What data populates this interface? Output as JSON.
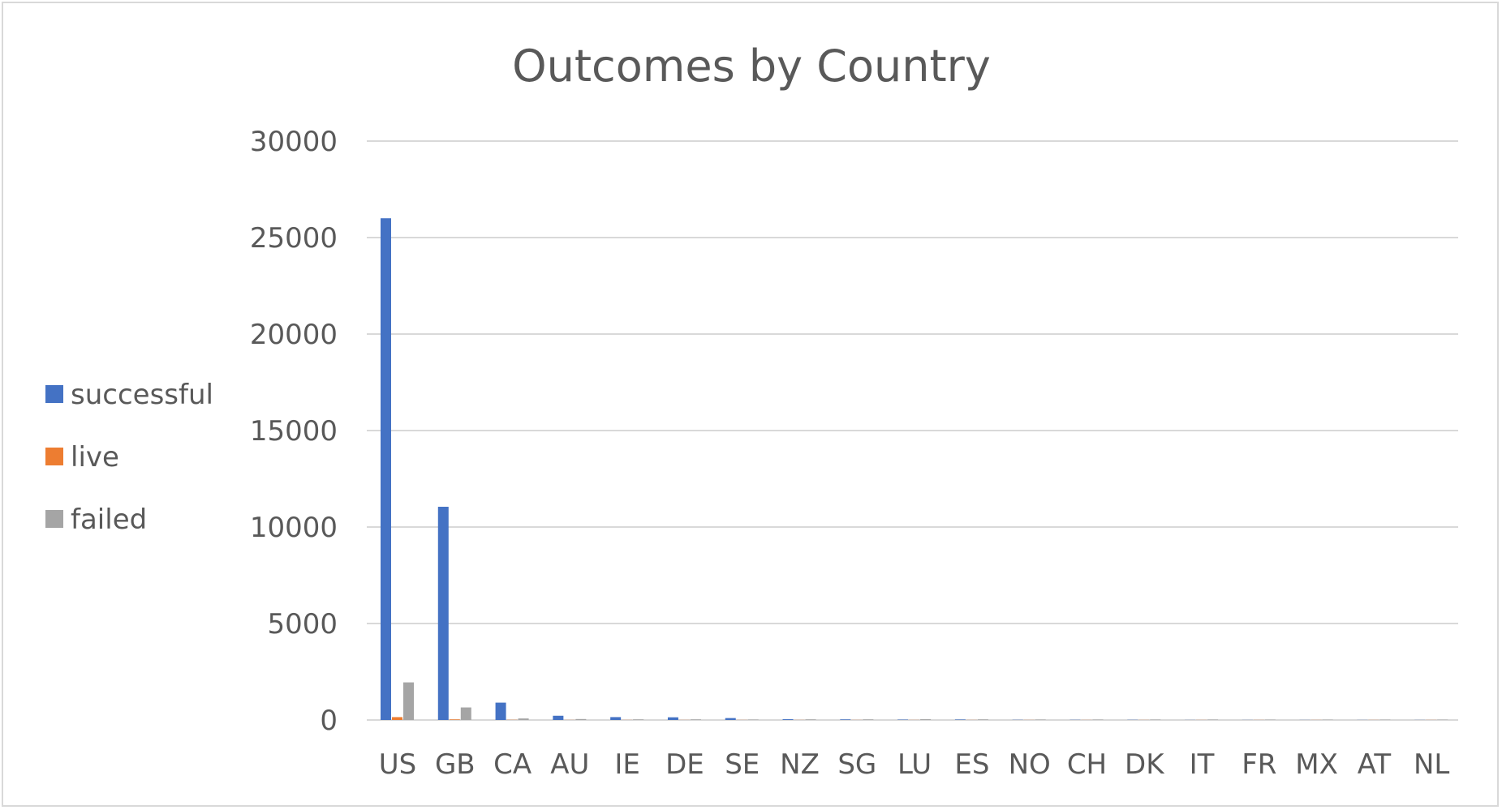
{
  "chart_data": {
    "type": "bar",
    "title": "Outcomes by Country",
    "xlabel": "",
    "ylabel": "",
    "categories": [
      "US",
      "GB",
      "CA",
      "AU",
      "IE",
      "DE",
      "SE",
      "NZ",
      "SG",
      "LU",
      "ES",
      "NO",
      "CH",
      "DK",
      "IT",
      "FR",
      "MX",
      "AT",
      "NL"
    ],
    "series": [
      {
        "name": "successful",
        "color": "#4472c4",
        "values": [
          26000,
          11050,
          900,
          220,
          150,
          140,
          100,
          40,
          30,
          20,
          25,
          10,
          10,
          10,
          5,
          5,
          5,
          5,
          5
        ]
      },
      {
        "name": "live",
        "color": "#ed7d31",
        "values": [
          150,
          30,
          10,
          5,
          5,
          5,
          5,
          5,
          5,
          5,
          5,
          5,
          5,
          5,
          5,
          5,
          5,
          5,
          5
        ]
      },
      {
        "name": "failed",
        "color": "#a5a5a5",
        "values": [
          1950,
          650,
          80,
          50,
          30,
          30,
          20,
          30,
          30,
          40,
          30,
          20,
          20,
          20,
          20,
          15,
          15,
          15,
          15
        ]
      }
    ],
    "ylim": [
      0,
      30000
    ],
    "yticks": [
      0,
      5000,
      10000,
      15000,
      20000,
      25000,
      30000
    ],
    "grid": true,
    "legend_position": "left"
  }
}
